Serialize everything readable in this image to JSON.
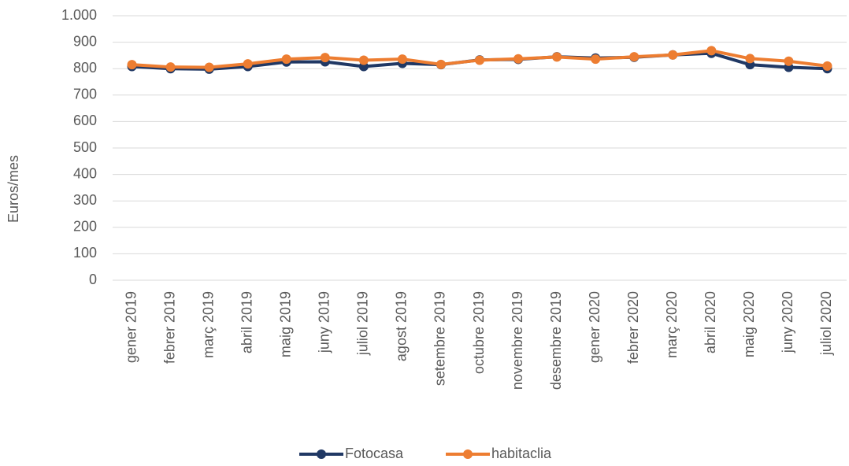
{
  "chart_data": {
    "type": "line",
    "y_label": "Euros/mes",
    "categories": [
      "gener 2019",
      "febrer 2019",
      "març 2019",
      "abril 2019",
      "maig 2019",
      "juny 2019",
      "juliol 2019",
      "agost 2019",
      "setembre 2019",
      "octubre 2019",
      "novembre 2019",
      "desembre 2019",
      "gener 2020",
      "febrer 2020",
      "març 2020",
      "abril 2020",
      "maig 2020",
      "juny 2020",
      "juliol 2020"
    ],
    "series": [
      {
        "name": "Fotocasa",
        "color": "#203864",
        "values": [
          808,
          800,
          798,
          808,
          825,
          826,
          808,
          820,
          815,
          833,
          835,
          845,
          840,
          843,
          852,
          858,
          815,
          805,
          800
        ]
      },
      {
        "name": "habitaclia",
        "color": "#ed7d31",
        "values": [
          815,
          806,
          805,
          818,
          836,
          842,
          832,
          836,
          816,
          832,
          837,
          844,
          836,
          845,
          852,
          868,
          838,
          828,
          810
        ]
      }
    ],
    "ylim": [
      0,
      1000
    ],
    "yticks": [
      0,
      100,
      200,
      300,
      400,
      500,
      600,
      700,
      800,
      900,
      {
        "value": 1000,
        "label": "1.000"
      }
    ],
    "grid": true,
    "legend": "bottom"
  }
}
